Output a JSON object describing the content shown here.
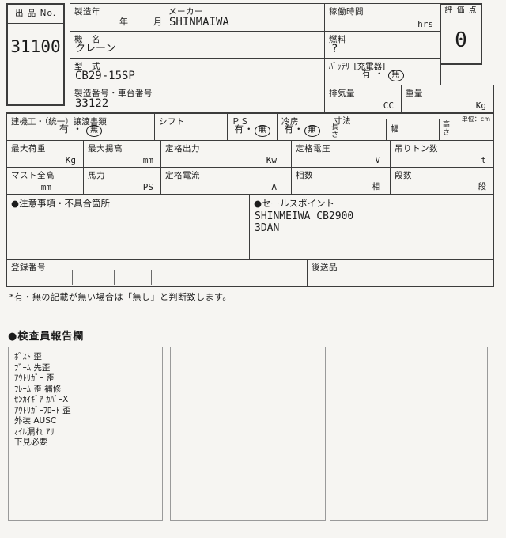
{
  "colors": {
    "page_bg": "#f6f5f2",
    "border_dark": "#3c3c3c",
    "border_gray": "#9a9a9a",
    "text": "#1c1c1c"
  },
  "form": {
    "lot": {
      "label": "出 品 No.",
      "value": "31100"
    },
    "mfg_year": {
      "label": "製造年",
      "year": "年",
      "month": "月"
    },
    "maker": {
      "label": "メーカー",
      "value": "SHINMAIWA"
    },
    "hours": {
      "label": "稼働時間",
      "unit": "hrs"
    },
    "score": {
      "label": "評 価 点",
      "value": "0"
    },
    "machine": {
      "label": "機　名",
      "value": "クレーン"
    },
    "fuel": {
      "label": "燃料",
      "value": "?"
    },
    "model": {
      "label": "型　式",
      "value": "CB29-15SP"
    },
    "battery": {
      "label": "ﾊﾞｯﾃﾘｰ[充電器]",
      "yes": "有",
      "sep": "・",
      "no": "無"
    },
    "serial": {
      "label": "製造番号・車台番号",
      "value": "33122"
    },
    "displacement": {
      "label": "排気量",
      "unit": "CC"
    },
    "weight": {
      "label": "重量",
      "unit": "Kg"
    },
    "docs": {
      "label": "建機工・（統一）譲渡書類",
      "yes": "有",
      "sep": "・",
      "no": "無"
    },
    "shift": {
      "label": "シフト"
    },
    "ps": {
      "label": "ＰＳ",
      "yes": "有",
      "sep": "・",
      "no": "無"
    },
    "aircon": {
      "label": "冷房",
      "yes": "有",
      "sep": "・",
      "no": "無"
    },
    "dims": {
      "label": "寸法",
      "length": "長さ",
      "width": "幅",
      "height": "高さ",
      "unit_note": "単位：cm"
    },
    "max_load": {
      "label": "最大荷重",
      "unit": "Kg"
    },
    "max_lift": {
      "label": "最大揚高",
      "unit": "mm"
    },
    "rated_output": {
      "label": "定格出力",
      "unit": "Kw"
    },
    "rated_voltage": {
      "label": "定格電圧",
      "unit": "V"
    },
    "hoist_tons": {
      "label": "吊りトン数",
      "unit": "t"
    },
    "mast_height": {
      "label": "マスト全高",
      "unit": "mm"
    },
    "horsepower": {
      "label": "馬力",
      "unit": "PS"
    },
    "rated_current": {
      "label": "定格電流",
      "unit": "A"
    },
    "phases": {
      "label": "相数",
      "unit": "相"
    },
    "stages": {
      "label": "段数",
      "unit": "段"
    },
    "notes": {
      "label": "●注意事項・不具合箇所"
    },
    "sales": {
      "label": "●セールスポイント",
      "lines": [
        "SHINMEIWA CB2900",
        "3DAN"
      ]
    },
    "registration": {
      "label": "登録番号"
    },
    "later_items": {
      "label": "後送品"
    },
    "footnote": "*有・無の記載が無い場合は「無し」と判断致します。"
  },
  "inspector": {
    "title": "●検査員報告欄",
    "report_lines": [
      "ﾎﾟｽﾄ 歪",
      "ﾌﾞｰﾑ 先歪",
      "ｱｳﾄﾘｶﾞｰ 歪",
      "ﾌﾚｰﾑ 歪 補修",
      "ｾﾝｶｲｷﾞｱ ｶﾊﾞｰX",
      "ｱｳﾄﾘｶﾞｰﾌﾛｰﾄ 歪",
      "外装 AUSC",
      "ｵｲﾙ漏れ ｱﾘ",
      "下見必要"
    ]
  }
}
